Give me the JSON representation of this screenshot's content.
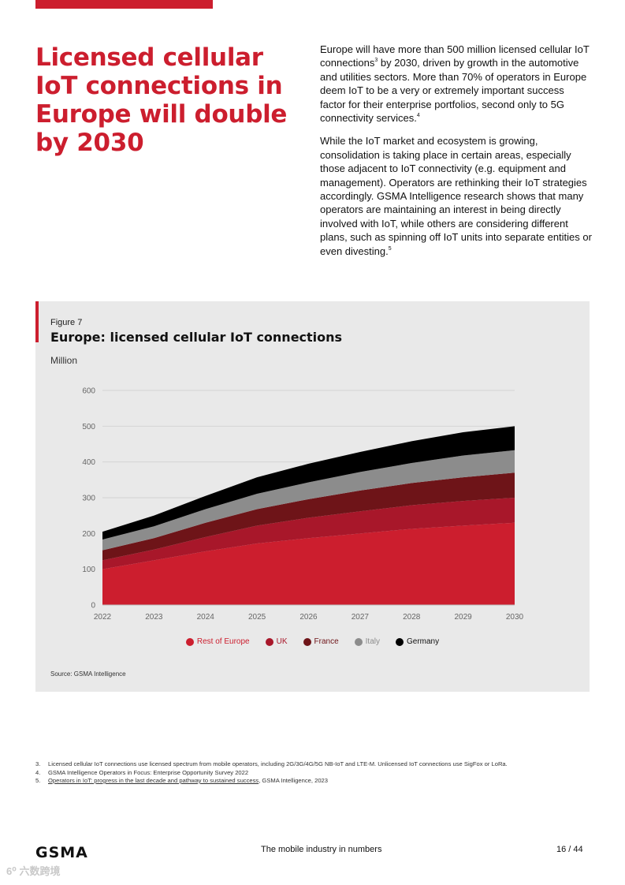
{
  "page": {
    "headline": "Licensed cellular IoT connections in Europe will double by 2030",
    "paragraphs": [
      {
        "parts": [
          "Europe will have more than 500 million licensed cellular IoT connections",
          "3",
          " by 2030, driven by growth in the automotive and utilities sectors. More than 70% of operators in Europe deem IoT to be a very or extremely important success factor for their enterprise portfolios, second only to 5G connectivity services.",
          "4"
        ]
      },
      {
        "parts": [
          "While the IoT market and ecosystem is growing, consolidation is taking place in certain areas, especially those adjacent to IoT connectivity (e.g. equipment and management). Operators are rethinking their IoT strategies accordingly. GSMA Intelligence research shows that many operators are maintaining an interest in being directly involved with IoT, while others are considering different plans, such as spinning off IoT units into separate entities or even divesting.",
          "5"
        ]
      }
    ]
  },
  "figure": {
    "label": "Figure 7",
    "title": "Europe: licensed cellular IoT connections",
    "unit": "Million",
    "source": "Source: GSMA Intelligence"
  },
  "chart_data": {
    "type": "area",
    "stacked": true,
    "x": [
      "2022",
      "2023",
      "2024",
      "2025",
      "2026",
      "2027",
      "2028",
      "2029",
      "2030"
    ],
    "ylim": [
      0,
      600
    ],
    "yticks": [
      0,
      100,
      200,
      300,
      400,
      500,
      600
    ],
    "grid": true,
    "legend_position": "bottom",
    "series": [
      {
        "name": "Rest of Europe",
        "color": "#cc1e2e",
        "values": [
          100,
          125,
          150,
          172,
          187,
          200,
          213,
          222,
          230
        ]
      },
      {
        "name": "UK",
        "color": "#a8172a",
        "values": [
          25,
          30,
          40,
          50,
          57,
          62,
          66,
          69,
          70
        ]
      },
      {
        "name": "France",
        "color": "#6e1418",
        "values": [
          28,
          32,
          40,
          46,
          52,
          58,
          62,
          66,
          70
        ]
      },
      {
        "name": "Italy",
        "color": "#8c8c8c",
        "values": [
          30,
          33,
          38,
          43,
          47,
          52,
          56,
          61,
          63
        ]
      },
      {
        "name": "Germany",
        "color": "#000000",
        "values": [
          22,
          30,
          37,
          46,
          52,
          56,
          61,
          65,
          67
        ]
      }
    ]
  },
  "footnotes": [
    {
      "num": "3.",
      "text": "Licensed cellular IoT connections use licensed spectrum from mobile operators, including 2G/3G/4G/5G NB-IoT and LTE-M. Unlicensed IoT connections use SigFox or LoRa."
    },
    {
      "num": "4.",
      "text": "GSMA Intelligence Operators in Focus: Enterprise Opportunity Survey 2022"
    },
    {
      "num": "5.",
      "link": "Operators in IoT: progress in the last decade and pathway to sustained success",
      "text": ", GSMA Intelligence, 2023"
    }
  ],
  "footer": {
    "logo": "GSMA",
    "center": "The mobile industry in numbers",
    "page": "16 / 44"
  },
  "watermark": "6⁰ 六数跨境"
}
